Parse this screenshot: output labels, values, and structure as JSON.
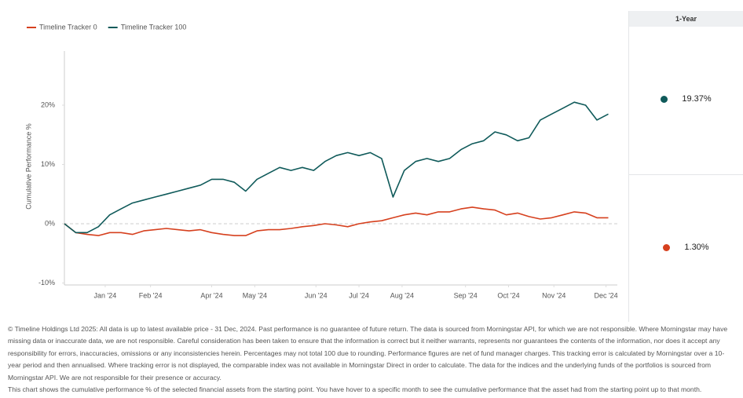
{
  "chart_data": {
    "type": "line",
    "y_label": "Cumulative Performance %",
    "xlim": [
      0,
      12.2
    ],
    "xticks": [
      {
        "value": 0.9,
        "label": "Jan '24"
      },
      {
        "value": 1.9,
        "label": "Feb '24"
      },
      {
        "value": 3.25,
        "label": "Apr '24"
      },
      {
        "value": 4.2,
        "label": "May '24"
      },
      {
        "value": 5.55,
        "label": "Jun '24"
      },
      {
        "value": 6.5,
        "label": "Jul '24"
      },
      {
        "value": 7.45,
        "label": "Aug '24"
      },
      {
        "value": 8.85,
        "label": "Sep '24"
      },
      {
        "value": 9.8,
        "label": "Oct '24"
      },
      {
        "value": 10.8,
        "label": "Nov '24"
      },
      {
        "value": 11.95,
        "label": "Dec '24"
      }
    ],
    "ylim": [
      -10,
      28
    ],
    "yticks": [
      {
        "value": -10,
        "label": "-10%"
      },
      {
        "value": 0,
        "label": "0%"
      },
      {
        "value": 10,
        "label": "10%"
      },
      {
        "value": 20,
        "label": "20%"
      }
    ],
    "x": [
      0,
      0.25,
      0.5,
      0.75,
      1,
      1.25,
      1.5,
      1.75,
      2,
      2.25,
      2.5,
      2.75,
      3,
      3.25,
      3.5,
      3.75,
      4,
      4.25,
      4.5,
      4.75,
      5,
      5.25,
      5.5,
      5.75,
      6,
      6.25,
      6.5,
      6.75,
      7,
      7.25,
      7.5,
      7.75,
      8,
      8.25,
      8.5,
      8.75,
      9,
      9.25,
      9.5,
      9.75,
      10,
      10.25,
      10.5,
      10.75,
      11,
      11.25,
      11.5,
      11.75,
      12
    ],
    "series": [
      {
        "name": "Timeline Tracker 0",
        "color": "#d6401e",
        "values": [
          0,
          -1.5,
          -1.8,
          -2.0,
          -1.5,
          -1.5,
          -1.8,
          -1.2,
          -1.0,
          -0.8,
          -1.0,
          -1.2,
          -1.0,
          -1.5,
          -1.8,
          -2.0,
          -2.0,
          -1.2,
          -1.0,
          -1.0,
          -0.8,
          -0.5,
          -0.3,
          0.0,
          -0.2,
          -0.5,
          0.0,
          0.3,
          0.5,
          1.0,
          1.5,
          1.8,
          1.5,
          2.0,
          2.0,
          2.5,
          2.8,
          2.5,
          2.3,
          1.5,
          1.8,
          1.2,
          0.8,
          1.0,
          1.5,
          2.0,
          1.8,
          1.0,
          1.0
        ]
      },
      {
        "name": "Timeline Tracker 100",
        "color": "#0f5a5a",
        "values": [
          0,
          -1.5,
          -1.5,
          -0.5,
          1.5,
          2.5,
          3.5,
          4.0,
          4.5,
          5.0,
          5.5,
          6.0,
          6.5,
          7.5,
          7.5,
          7.0,
          5.5,
          7.5,
          8.5,
          9.5,
          9.0,
          9.5,
          9.0,
          10.5,
          11.5,
          12.0,
          11.5,
          12.0,
          11.0,
          4.5,
          9.0,
          10.5,
          11.0,
          10.5,
          11.0,
          12.5,
          13.5,
          14.0,
          15.5,
          15.0,
          14.0,
          14.5,
          17.5,
          18.5,
          19.5,
          20.5,
          20.0,
          17.5,
          18.5
        ]
      }
    ]
  },
  "summary": {
    "header": "1-Year",
    "values": [
      19.37,
      1.3
    ],
    "value_labels": [
      "19.37%",
      "1.30%"
    ]
  },
  "footer": {
    "disclaimer": "© Timeline Holdings Ltd 2025: All data is up to latest available price - 31 Dec, 2024. Past performance is no guarantee of future return. The data is sourced from Morningstar API, for which we are not responsible. Where Morningstar may have missing data or inaccurate data, we are not responsible. Careful consideration has been taken to ensure that the information is correct but it neither warrants, represents nor guarantees the contents of the information, nor does it accept any responsibility for errors, inaccuracies, omissions or any inconsistencies herein. Percentages may not total 100 due to rounding. Performance figures are net of fund manager charges. This tracking error is calculated by Morningstar over a 10-year period and then annualised. Where tracking error is not displayed, the comparable index was not available in Morningstar Direct in order to calculate. The data for the indices and the underlying funds of the portfolios is sourced from Morningstar API. We are not responsible for their presence or accuracy.",
    "note": "This chart shows the cumulative performance % of the selected financial assets from the starting point. You have hover to a specific month to see the cumulative performance that the asset had from the starting point up to that month."
  }
}
